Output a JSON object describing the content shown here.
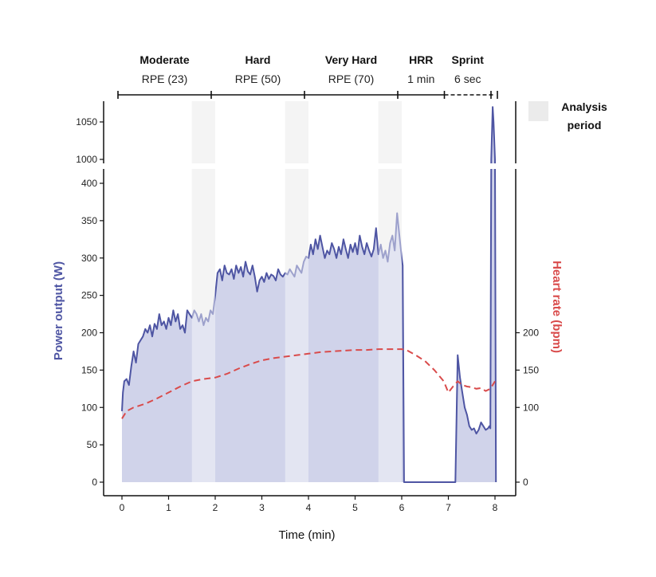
{
  "chart_data": {
    "type": "line",
    "title": "",
    "xlabel": "Time (min)",
    "ylabel_left": "Power output (W)",
    "ylabel_right": "Heart rate (bpm)",
    "xlim": [
      0,
      8
    ],
    "ylim_lower": [
      0,
      400
    ],
    "ylim_upper": [
      1000,
      1050
    ],
    "x_ticks": [
      "0",
      "1",
      "2",
      "3",
      "4",
      "5",
      "6",
      "7",
      "8"
    ],
    "y_ticks_lower": [
      "0",
      "50",
      "100",
      "150",
      "200",
      "250",
      "300",
      "350",
      "400"
    ],
    "y_ticks_upper": [
      "1000",
      "1050"
    ],
    "y_ticks_right": [
      "0",
      "100",
      "150",
      "200"
    ],
    "phases": [
      {
        "name": "Moderate",
        "sub": "RPE (23)",
        "start": 0,
        "end": 2
      },
      {
        "name": "Hard",
        "sub": "RPE (50)",
        "start": 2,
        "end": 4
      },
      {
        "name": "Very Hard",
        "sub": "RPE (70)",
        "start": 4,
        "end": 6
      },
      {
        "name": "HRR",
        "sub": "1 min",
        "start": 6,
        "end": 7
      },
      {
        "name": "Sprint",
        "sub": "6 sec",
        "start": 7,
        "end": 8
      }
    ],
    "analysis_periods": [
      [
        1.5,
        2.0
      ],
      [
        3.5,
        4.0
      ],
      [
        5.5,
        6.0
      ]
    ],
    "legend": {
      "label_line1": "Analysis",
      "label_line2": "period",
      "position": "top-right"
    },
    "series": [
      {
        "name": "Power output",
        "color": "#4e55a3",
        "fill": "#c8cbe6",
        "x": [
          0.0,
          0.02,
          0.05,
          0.1,
          0.15,
          0.2,
          0.25,
          0.3,
          0.35,
          0.4,
          0.45,
          0.5,
          0.55,
          0.6,
          0.65,
          0.7,
          0.75,
          0.8,
          0.85,
          0.9,
          0.95,
          1.0,
          1.05,
          1.1,
          1.15,
          1.2,
          1.25,
          1.3,
          1.35,
          1.4,
          1.45,
          1.5,
          1.55,
          1.6,
          1.65,
          1.7,
          1.75,
          1.8,
          1.85,
          1.9,
          1.95,
          2.0,
          2.05,
          2.1,
          2.15,
          2.2,
          2.25,
          2.3,
          2.35,
          2.4,
          2.45,
          2.5,
          2.55,
          2.6,
          2.65,
          2.7,
          2.75,
          2.8,
          2.85,
          2.9,
          2.95,
          3.0,
          3.05,
          3.1,
          3.15,
          3.2,
          3.25,
          3.3,
          3.35,
          3.4,
          3.45,
          3.5,
          3.55,
          3.6,
          3.65,
          3.7,
          3.75,
          3.8,
          3.85,
          3.9,
          3.95,
          4.0,
          4.05,
          4.1,
          4.15,
          4.2,
          4.25,
          4.3,
          4.35,
          4.4,
          4.45,
          4.5,
          4.55,
          4.6,
          4.65,
          4.7,
          4.75,
          4.8,
          4.85,
          4.9,
          4.95,
          5.0,
          5.05,
          5.1,
          5.15,
          5.2,
          5.25,
          5.3,
          5.35,
          5.4,
          5.45,
          5.5,
          5.55,
          5.6,
          5.65,
          5.7,
          5.75,
          5.8,
          5.85,
          5.9,
          5.95,
          6.0,
          6.02,
          6.05,
          6.5,
          7.08,
          7.1,
          7.15,
          7.2,
          7.25,
          7.3,
          7.35,
          7.4,
          7.45,
          7.5,
          7.55,
          7.6,
          7.65,
          7.7,
          7.75,
          7.8,
          7.85,
          7.88,
          7.9,
          7.92,
          7.95,
          7.97,
          8.0,
          8.02
        ],
        "values": [
          95,
          120,
          135,
          138,
          130,
          155,
          175,
          160,
          185,
          190,
          195,
          205,
          200,
          210,
          195,
          212,
          205,
          225,
          210,
          215,
          205,
          220,
          210,
          230,
          215,
          225,
          205,
          210,
          200,
          230,
          225,
          220,
          230,
          225,
          215,
          225,
          210,
          220,
          215,
          230,
          225,
          250,
          280,
          285,
          270,
          290,
          280,
          278,
          285,
          272,
          290,
          280,
          288,
          275,
          295,
          282,
          278,
          290,
          275,
          255,
          270,
          275,
          268,
          280,
          272,
          278,
          276,
          270,
          285,
          278,
          275,
          280,
          278,
          285,
          280,
          275,
          290,
          285,
          280,
          295,
          302,
          300,
          318,
          305,
          325,
          312,
          330,
          315,
          300,
          310,
          305,
          320,
          312,
          300,
          315,
          305,
          325,
          312,
          300,
          318,
          308,
          320,
          305,
          330,
          315,
          305,
          320,
          310,
          302,
          312,
          340,
          305,
          318,
          300,
          310,
          295,
          320,
          330,
          310,
          360,
          330,
          300,
          290,
          0,
          0,
          0,
          0,
          0,
          170,
          140,
          120,
          100,
          90,
          75,
          70,
          72,
          65,
          70,
          80,
          75,
          70,
          72,
          75,
          72,
          1000,
          1070,
          1050,
          1000,
          0
        ]
      },
      {
        "name": "Heart rate",
        "color": "#d94b4b",
        "x": [
          0.0,
          0.1,
          0.25,
          0.5,
          0.75,
          1.0,
          1.25,
          1.5,
          1.75,
          2.0,
          2.25,
          2.5,
          2.75,
          3.0,
          3.25,
          3.5,
          3.75,
          4.0,
          4.25,
          4.5,
          4.75,
          5.0,
          5.25,
          5.5,
          5.75,
          6.0,
          6.1,
          6.3,
          6.5,
          6.7,
          6.9,
          7.0,
          7.1,
          7.2,
          7.3,
          7.4,
          7.5,
          7.6,
          7.7,
          7.8,
          7.9,
          8.0
        ],
        "values": [
          85,
          95,
          100,
          105,
          112,
          120,
          128,
          135,
          138,
          140,
          145,
          152,
          158,
          163,
          166,
          168,
          170,
          172,
          174,
          175,
          176,
          177,
          177,
          178,
          178,
          178,
          177,
          170,
          162,
          150,
          135,
          120,
          128,
          135,
          130,
          128,
          127,
          125,
          126,
          122,
          125,
          135
        ]
      }
    ]
  }
}
